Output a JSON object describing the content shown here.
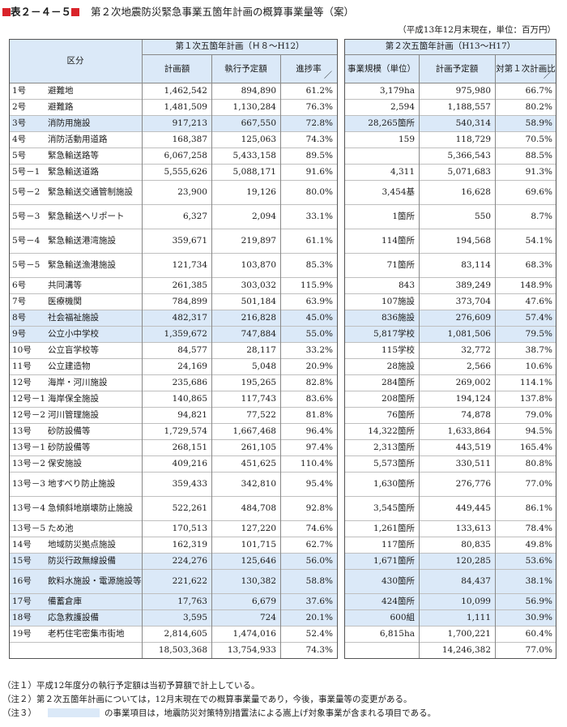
{
  "title": {
    "label": "表２－４－５",
    "text": "第２次地震防災緊急事業五箇年計画の概算事業量等（案）"
  },
  "subnote": "（平成13年12月末現在，単位：百万円）",
  "header": {
    "category": "区分",
    "plan1": "第１次五箇年計画（Ｈ８～H12）",
    "plan2": "第２次五箇年計画（H13～H17）",
    "col_plan": "計画額",
    "col_exec": "執行予定額",
    "col_rate": "進捗率",
    "col_scale": "事業規模（単位）",
    "col_plan2": "計画予定額",
    "col_ratio": "対第１次計画比",
    "slash": "／"
  },
  "rows": [
    {
      "no": "1号",
      "name": "避難地",
      "plan": "1,462,542",
      "exec": "894,890",
      "rate": "61.2%",
      "scale": "3,179ha",
      "plan2": "975,980",
      "ratio": "66.7%",
      "hl": false
    },
    {
      "no": "2号",
      "name": "避難路",
      "plan": "1,481,509",
      "exec": "1,130,284",
      "rate": "76.3%",
      "scale": "2,594",
      "plan2": "1,188,557",
      "ratio": "80.2%",
      "hl": false
    },
    {
      "no": "3号",
      "name": "消防用施設",
      "plan": "917,213",
      "exec": "667,550",
      "rate": "72.8%",
      "scale": "28,265箇所",
      "plan2": "540,314",
      "ratio": "58.9%",
      "hl": true
    },
    {
      "no": "4号",
      "name": "消防活動用道路",
      "plan": "168,387",
      "exec": "125,063",
      "rate": "74.3%",
      "scale": "159",
      "plan2": "118,729",
      "ratio": "70.5%",
      "hl": false
    },
    {
      "no": "5号",
      "name": "緊急輸送路等",
      "plan": "6,067,258",
      "exec": "5,433,158",
      "rate": "89.5%",
      "scale": "",
      "plan2": "5,366,543",
      "ratio": "88.5%",
      "hl": false
    },
    {
      "no": "5号－1",
      "name": "緊急輸送道路",
      "plan": "5,555,626",
      "exec": "5,088,171",
      "rate": "91.6%",
      "scale": "4,311",
      "plan2": "5,071,683",
      "ratio": "91.3%",
      "hl": false
    },
    {
      "no": "5号－2",
      "name": "緊急輸送交通管制施設",
      "plan": "23,900",
      "exec": "19,126",
      "rate": "80.0%",
      "scale": "3,454基",
      "plan2": "16,628",
      "ratio": "69.6%",
      "hl": false
    },
    {
      "no": "5号－3",
      "name": "緊急輸送ヘリポート",
      "plan": "6,327",
      "exec": "2,094",
      "rate": "33.1%",
      "scale": "1箇所",
      "plan2": "550",
      "ratio": "8.7%",
      "hl": false
    },
    {
      "no": "5号－4",
      "name": "緊急輸送港湾施設",
      "plan": "359,671",
      "exec": "219,897",
      "rate": "61.1%",
      "scale": "114箇所",
      "plan2": "194,568",
      "ratio": "54.1%",
      "hl": false
    },
    {
      "no": "5号－5",
      "name": "緊急輸送漁港施設",
      "plan": "121,734",
      "exec": "103,870",
      "rate": "85.3%",
      "scale": "71箇所",
      "plan2": "83,114",
      "ratio": "68.3%",
      "hl": false
    },
    {
      "no": "6号",
      "name": "共同溝等",
      "plan": "261,385",
      "exec": "303,032",
      "rate": "115.9%",
      "scale": "843",
      "plan2": "389,249",
      "ratio": "148.9%",
      "hl": false
    },
    {
      "no": "7号",
      "name": "医療機関",
      "plan": "784,899",
      "exec": "501,184",
      "rate": "63.9%",
      "scale": "107施設",
      "plan2": "373,704",
      "ratio": "47.6%",
      "hl": false
    },
    {
      "no": "8号",
      "name": "社会福祉施設",
      "plan": "482,317",
      "exec": "216,828",
      "rate": "45.0%",
      "scale": "836施設",
      "plan2": "276,609",
      "ratio": "57.4%",
      "hl": true
    },
    {
      "no": "9号",
      "name": "公立小中学校",
      "plan": "1,359,672",
      "exec": "747,884",
      "rate": "55.0%",
      "scale": "5,817学校",
      "plan2": "1,081,506",
      "ratio": "79.5%",
      "hl": true
    },
    {
      "no": "10号",
      "name": "公立盲学校等",
      "plan": "84,577",
      "exec": "28,117",
      "rate": "33.2%",
      "scale": "115学校",
      "plan2": "32,772",
      "ratio": "38.7%",
      "hl": false
    },
    {
      "no": "11号",
      "name": "公立建造物",
      "plan": "24,169",
      "exec": "5,048",
      "rate": "20.9%",
      "scale": "28施設",
      "plan2": "2,566",
      "ratio": "10.6%",
      "hl": false
    },
    {
      "no": "12号",
      "name": "海岸・河川施設",
      "plan": "235,686",
      "exec": "195,265",
      "rate": "82.8%",
      "scale": "284箇所",
      "plan2": "269,002",
      "ratio": "114.1%",
      "hl": false
    },
    {
      "no": "12号－1",
      "name": "海岸保全施設",
      "plan": "140,865",
      "exec": "117,743",
      "rate": "83.6%",
      "scale": "208箇所",
      "plan2": "194,124",
      "ratio": "137.8%",
      "hl": false
    },
    {
      "no": "12号－2",
      "name": "河川管理施設",
      "plan": "94,821",
      "exec": "77,522",
      "rate": "81.8%",
      "scale": "76箇所",
      "plan2": "74,878",
      "ratio": "79.0%",
      "hl": false
    },
    {
      "no": "13号",
      "name": "砂防設備等",
      "plan": "1,729,574",
      "exec": "1,667,468",
      "rate": "96.4%",
      "scale": "14,322箇所",
      "plan2": "1,633,864",
      "ratio": "94.5%",
      "hl": false
    },
    {
      "no": "13号－1",
      "name": "砂防設備等",
      "plan": "268,151",
      "exec": "261,105",
      "rate": "97.4%",
      "scale": "2,313箇所",
      "plan2": "443,519",
      "ratio": "165.4%",
      "hl": false
    },
    {
      "no": "13号－2",
      "name": "保安施設",
      "plan": "409,216",
      "exec": "451,625",
      "rate": "110.4%",
      "scale": "5,573箇所",
      "plan2": "330,511",
      "ratio": "80.8%",
      "hl": false
    },
    {
      "no": "13号－3",
      "name": "地すべり防止施設",
      "plan": "359,433",
      "exec": "342,810",
      "rate": "95.4%",
      "scale": "1,630箇所",
      "plan2": "276,776",
      "ratio": "77.0%",
      "hl": false
    },
    {
      "no": "13号－4",
      "name": "急傾斜地崩壊防止施設",
      "plan": "522,261",
      "exec": "484,708",
      "rate": "92.8%",
      "scale": "3,545箇所",
      "plan2": "449,445",
      "ratio": "86.1%",
      "hl": false
    },
    {
      "no": "13号－5",
      "name": "ため池",
      "plan": "170,513",
      "exec": "127,220",
      "rate": "74.6%",
      "scale": "1,261箇所",
      "plan2": "133,613",
      "ratio": "78.4%",
      "hl": false
    },
    {
      "no": "14号",
      "name": "地域防災拠点施設",
      "plan": "162,319",
      "exec": "101,715",
      "rate": "62.7%",
      "scale": "117箇所",
      "plan2": "80,835",
      "ratio": "49.8%",
      "hl": false
    },
    {
      "no": "15号",
      "name": "防災行政無線設備",
      "plan": "224,276",
      "exec": "125,646",
      "rate": "56.0%",
      "scale": "1,671箇所",
      "plan2": "120,285",
      "ratio": "53.6%",
      "hl": true
    },
    {
      "no": "16号",
      "name": "飲料水施設・電源施設等",
      "plan": "221,622",
      "exec": "130,382",
      "rate": "58.8%",
      "scale": "430箇所",
      "plan2": "84,437",
      "ratio": "38.1%",
      "hl": true
    },
    {
      "no": "17号",
      "name": "備蓄倉庫",
      "plan": "17,763",
      "exec": "6,679",
      "rate": "37.6%",
      "scale": "424箇所",
      "plan2": "10,099",
      "ratio": "56.9%",
      "hl": true
    },
    {
      "no": "18号",
      "name": "応急救護設備",
      "plan": "3,595",
      "exec": "724",
      "rate": "20.1%",
      "scale": "600組",
      "plan2": "1,111",
      "ratio": "30.9%",
      "hl": true
    },
    {
      "no": "19号",
      "name": "老朽住宅密集市街地",
      "plan": "2,814,605",
      "exec": "1,474,016",
      "rate": "52.4%",
      "scale": "6,815ha",
      "plan2": "1,700,221",
      "ratio": "60.4%",
      "hl": false
    },
    {
      "no": "",
      "name": "",
      "plan": "18,503,368",
      "exec": "13,754,933",
      "rate": "74.3%",
      "scale": "",
      "plan2": "14,246,382",
      "ratio": "77.0%",
      "hl": false
    }
  ],
  "notes": [
    "（注１）平成12年度分の執行予定額は当初予算額で計上している。",
    "（注２）第２次五箇年計画については，12月末現在での概算事業量であり，今後，事業量等の変更がある。",
    "（注３）",
    "の事業項目は，地震防災対策特別措置法による嵩上げ対象事業が含まれる項目である。"
  ],
  "colors": {
    "highlight": "#dbe9f8",
    "marker": "#d9232a"
  }
}
